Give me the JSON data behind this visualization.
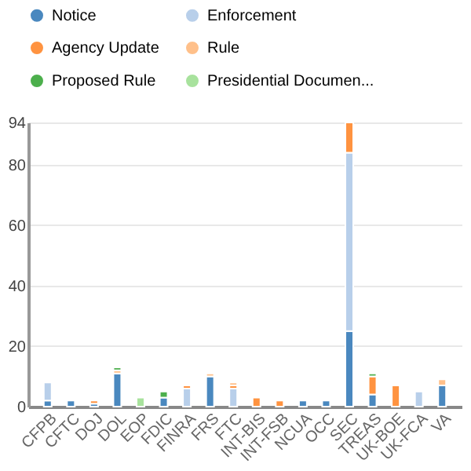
{
  "chart_data": {
    "type": "bar",
    "stacked": true,
    "legend": "top",
    "grid": "y",
    "ylim": [
      0,
      94
    ],
    "yticks": [
      0,
      20,
      40,
      60,
      80,
      94
    ],
    "categories": [
      "CFPB",
      "CFTC",
      "DOJ",
      "DOL",
      "EOP",
      "FDIC",
      "FINRA",
      "FRS",
      "FTC",
      "INT-BIS",
      "INT-FSB",
      "NCUA",
      "OCC",
      "SEC",
      "TREAS",
      "UK-BOE",
      "UK-FCA",
      "VA"
    ],
    "series": [
      {
        "name": "Notice",
        "color": "#4a88bf",
        "values": [
          2,
          2,
          1,
          11,
          null,
          3,
          null,
          10,
          null,
          null,
          null,
          2,
          2,
          25,
          4,
          null,
          null,
          7
        ]
      },
      {
        "name": "Enforcement",
        "color": "#b8cfea",
        "values": [
          6,
          null,
          null,
          null,
          null,
          null,
          6,
          null,
          6,
          null,
          null,
          null,
          null,
          59,
          null,
          null,
          5,
          null
        ]
      },
      {
        "name": "Agency Update",
        "color": "#ff9340",
        "values": [
          null,
          null,
          1,
          null,
          null,
          null,
          1,
          null,
          1,
          3,
          2,
          null,
          null,
          10,
          6,
          7,
          null,
          null
        ]
      },
      {
        "name": "Rule",
        "color": "#ffc08a",
        "values": [
          null,
          null,
          null,
          1,
          null,
          null,
          null,
          1,
          1,
          null,
          null,
          null,
          null,
          null,
          null,
          null,
          null,
          2
        ]
      },
      {
        "name": "Proposed Rule",
        "color": "#4caf4c",
        "values": [
          null,
          null,
          null,
          1,
          null,
          2,
          null,
          null,
          null,
          null,
          null,
          null,
          null,
          null,
          1,
          null,
          null,
          null
        ]
      },
      {
        "name": "Presidential Documen...",
        "color": "#a8e29d",
        "values": [
          null,
          null,
          null,
          null,
          3,
          null,
          null,
          null,
          null,
          null,
          null,
          null,
          null,
          null,
          null,
          null,
          null,
          null
        ]
      }
    ]
  }
}
